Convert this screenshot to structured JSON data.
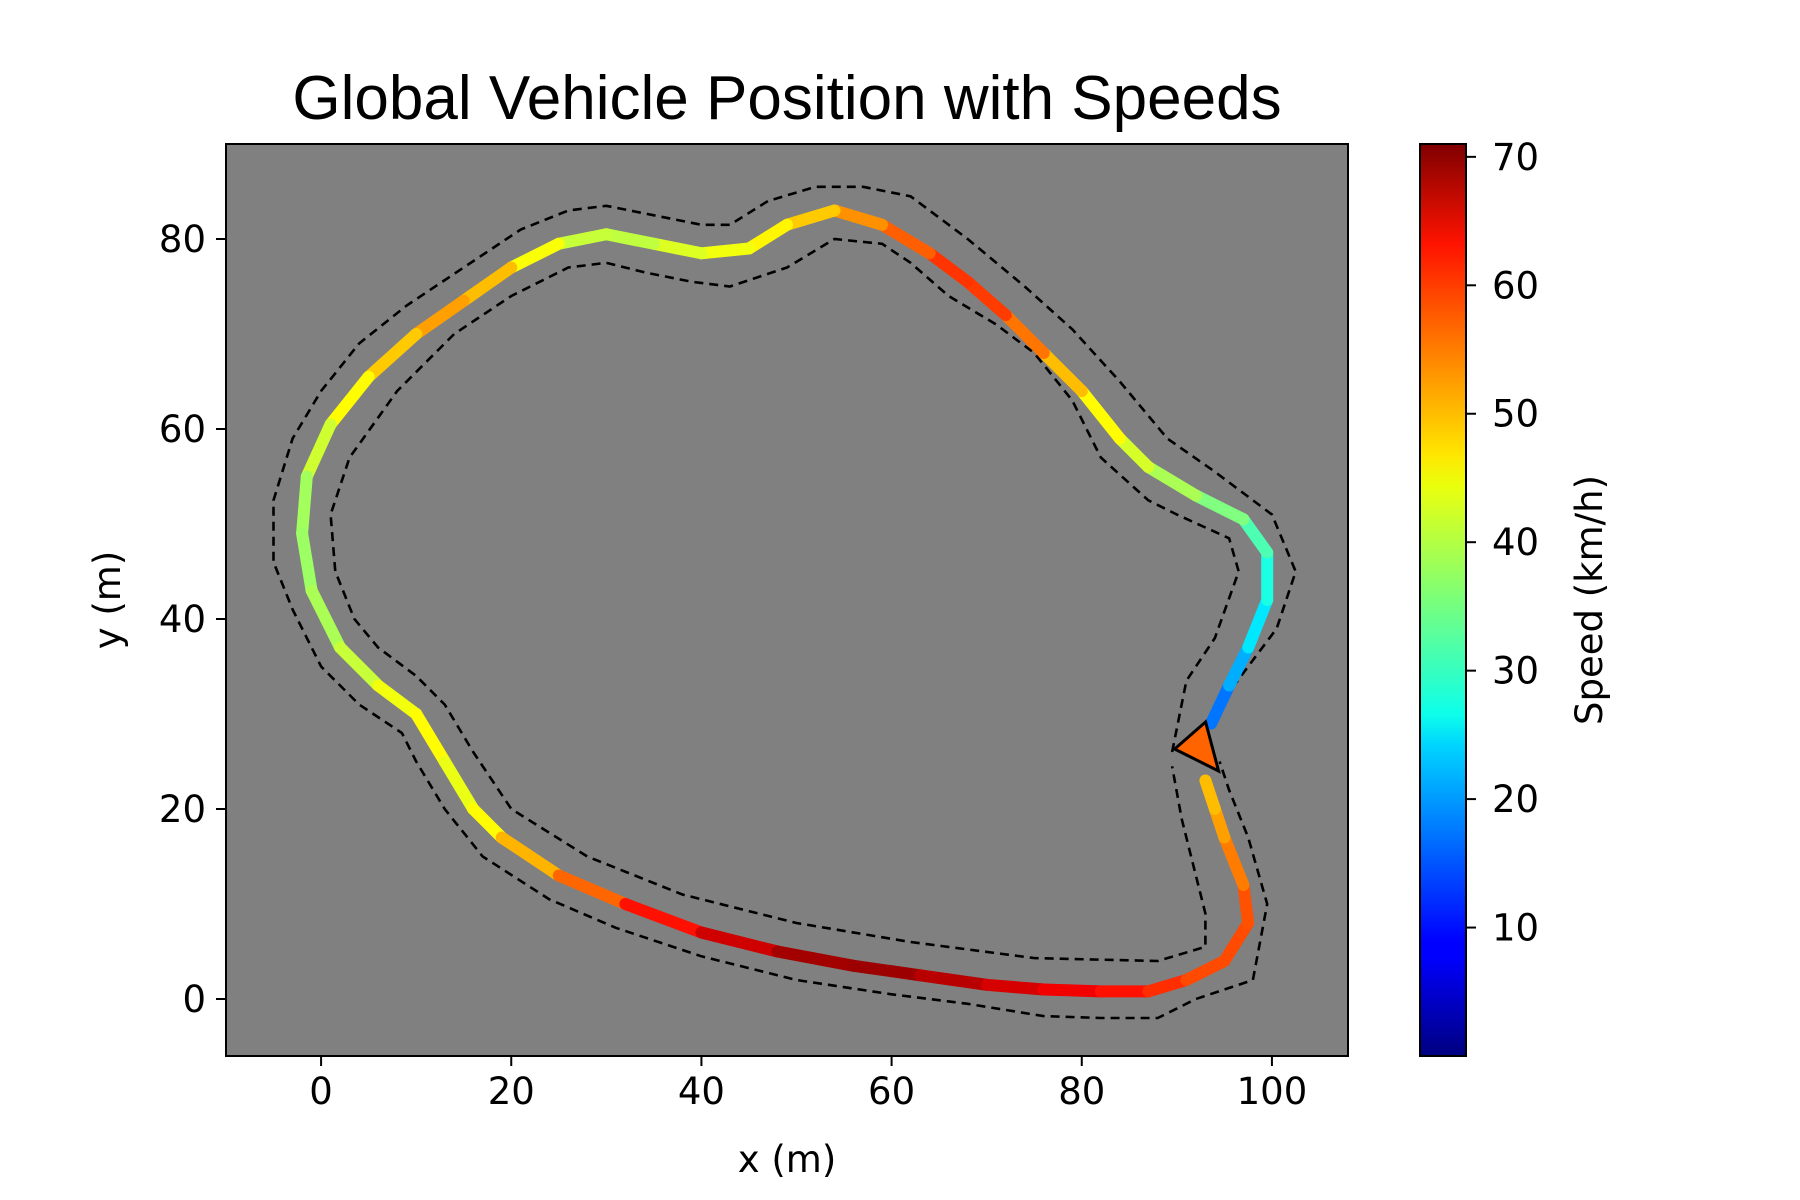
{
  "chart_data": {
    "type": "line",
    "title": "Global Vehicle Position with Speeds",
    "xlabel": "x (m)",
    "ylabel": "y (m)",
    "xlim": [
      -10,
      108
    ],
    "ylim": [
      -6,
      90
    ],
    "x_ticks": [
      0,
      20,
      40,
      60,
      80,
      100
    ],
    "y_ticks": [
      0,
      20,
      40,
      60,
      80
    ],
    "grid": false,
    "background_color": "#808080",
    "colormap": "jet",
    "colorbar": {
      "label": "Speed (km/h)",
      "min": 0,
      "max": 71,
      "ticks": [
        10,
        20,
        30,
        40,
        50,
        60,
        70
      ]
    },
    "series": [
      {
        "role": "vehicle-path",
        "points": [
          {
            "x": 93.6,
            "y": 29,
            "speed": 15
          },
          {
            "x": 95.5,
            "y": 33,
            "speed": 19
          },
          {
            "x": 97.5,
            "y": 37,
            "speed": 23
          },
          {
            "x": 99.5,
            "y": 42,
            "speed": 27
          },
          {
            "x": 99.5,
            "y": 47,
            "speed": 30
          },
          {
            "x": 97,
            "y": 50.5,
            "speed": 34
          },
          {
            "x": 92,
            "y": 53,
            "speed": 37
          },
          {
            "x": 87,
            "y": 56,
            "speed": 40
          },
          {
            "x": 84,
            "y": 59,
            "speed": 43
          },
          {
            "x": 80,
            "y": 64,
            "speed": 46
          },
          {
            "x": 76,
            "y": 68,
            "speed": 52
          },
          {
            "x": 72,
            "y": 72,
            "speed": 56
          },
          {
            "x": 68,
            "y": 75.5,
            "speed": 60
          },
          {
            "x": 64,
            "y": 78.5,
            "speed": 57
          },
          {
            "x": 59,
            "y": 81.5,
            "speed": 54
          },
          {
            "x": 54,
            "y": 83,
            "speed": 50
          },
          {
            "x": 49,
            "y": 81.5,
            "speed": 46
          },
          {
            "x": 45,
            "y": 79,
            "speed": 44
          },
          {
            "x": 40,
            "y": 78.5,
            "speed": 43
          },
          {
            "x": 35,
            "y": 79.5,
            "speed": 41
          },
          {
            "x": 30,
            "y": 80.5,
            "speed": 39
          },
          {
            "x": 25,
            "y": 79.5,
            "speed": 42
          },
          {
            "x": 20,
            "y": 77,
            "speed": 46
          },
          {
            "x": 15,
            "y": 73.5,
            "speed": 52
          },
          {
            "x": 10,
            "y": 70,
            "speed": 50
          },
          {
            "x": 5,
            "y": 65.5,
            "speed": 46
          },
          {
            "x": 1,
            "y": 60.5,
            "speed": 43
          },
          {
            "x": -1.5,
            "y": 55,
            "speed": 39
          },
          {
            "x": -2,
            "y": 49,
            "speed": 37
          },
          {
            "x": -1,
            "y": 43,
            "speed": 38
          },
          {
            "x": 2,
            "y": 37,
            "speed": 39
          },
          {
            "x": 6,
            "y": 33,
            "speed": 42
          },
          {
            "x": 10,
            "y": 30,
            "speed": 45
          },
          {
            "x": 13,
            "y": 25,
            "speed": 44
          },
          {
            "x": 16,
            "y": 20,
            "speed": 42
          },
          {
            "x": 19,
            "y": 17,
            "speed": 47
          },
          {
            "x": 25,
            "y": 13,
            "speed": 52
          },
          {
            "x": 32,
            "y": 10,
            "speed": 58
          },
          {
            "x": 40,
            "y": 7,
            "speed": 64
          },
          {
            "x": 48,
            "y": 5,
            "speed": 67
          },
          {
            "x": 56,
            "y": 3.5,
            "speed": 70
          },
          {
            "x": 63,
            "y": 2.5,
            "speed": 68
          },
          {
            "x": 70,
            "y": 1.5,
            "speed": 66
          },
          {
            "x": 76,
            "y": 1,
            "speed": 64
          },
          {
            "x": 82,
            "y": 0.8,
            "speed": 62
          },
          {
            "x": 87,
            "y": 0.8,
            "speed": 60
          },
          {
            "x": 91,
            "y": 2,
            "speed": 58
          },
          {
            "x": 95,
            "y": 4,
            "speed": 56
          },
          {
            "x": 97.5,
            "y": 8,
            "speed": 58
          },
          {
            "x": 97,
            "y": 12,
            "speed": 55
          },
          {
            "x": 95,
            "y": 17,
            "speed": 52
          },
          {
            "x": 94,
            "y": 20,
            "speed": 50
          },
          {
            "x": 93,
            "y": 23,
            "speed": 48
          }
        ]
      },
      {
        "role": "track-boundary-outer",
        "line_style": "dashed",
        "points": [
          {
            "x": 93,
            "y": 29
          },
          {
            "x": 96,
            "y": 33
          },
          {
            "x": 100.5,
            "y": 39
          },
          {
            "x": 102.5,
            "y": 45
          },
          {
            "x": 100,
            "y": 51
          },
          {
            "x": 94,
            "y": 55.5
          },
          {
            "x": 89,
            "y": 59
          },
          {
            "x": 84,
            "y": 65
          },
          {
            "x": 79,
            "y": 70.5
          },
          {
            "x": 74,
            "y": 75
          },
          {
            "x": 68,
            "y": 80
          },
          {
            "x": 62,
            "y": 84.5
          },
          {
            "x": 57,
            "y": 85.5
          },
          {
            "x": 52,
            "y": 85.5
          },
          {
            "x": 47,
            "y": 84
          },
          {
            "x": 43,
            "y": 81.5
          },
          {
            "x": 40,
            "y": 81.5
          },
          {
            "x": 35,
            "y": 82.5
          },
          {
            "x": 30,
            "y": 83.5
          },
          {
            "x": 26,
            "y": 83
          },
          {
            "x": 21,
            "y": 81
          },
          {
            "x": 15,
            "y": 77
          },
          {
            "x": 9,
            "y": 73
          },
          {
            "x": 4,
            "y": 69
          },
          {
            "x": 0,
            "y": 64
          },
          {
            "x": -3,
            "y": 59
          },
          {
            "x": -5,
            "y": 52.5
          },
          {
            "x": -5,
            "y": 46
          },
          {
            "x": -3,
            "y": 41
          },
          {
            "x": 0,
            "y": 35
          },
          {
            "x": 4,
            "y": 31
          },
          {
            "x": 8.5,
            "y": 28
          },
          {
            "x": 10,
            "y": 25
          },
          {
            "x": 13,
            "y": 20
          },
          {
            "x": 17,
            "y": 15
          },
          {
            "x": 24,
            "y": 10.5
          },
          {
            "x": 31,
            "y": 7.5
          },
          {
            "x": 40,
            "y": 4.5
          },
          {
            "x": 50,
            "y": 2
          },
          {
            "x": 60,
            "y": 0.5
          },
          {
            "x": 68,
            "y": -0.5
          },
          {
            "x": 76,
            "y": -1.8
          },
          {
            "x": 82,
            "y": -2
          },
          {
            "x": 88,
            "y": -2
          },
          {
            "x": 92,
            "y": 0
          },
          {
            "x": 98,
            "y": 2
          },
          {
            "x": 99.5,
            "y": 10
          },
          {
            "x": 97.5,
            "y": 17
          },
          {
            "x": 95.5,
            "y": 22
          },
          {
            "x": 94.5,
            "y": 25
          }
        ]
      },
      {
        "role": "track-boundary-inner",
        "line_style": "dashed",
        "points": [
          {
            "x": 89.5,
            "y": 26
          },
          {
            "x": 91,
            "y": 33.5
          },
          {
            "x": 94,
            "y": 38
          },
          {
            "x": 96.5,
            "y": 45
          },
          {
            "x": 95.5,
            "y": 48.5
          },
          {
            "x": 90,
            "y": 51
          },
          {
            "x": 87,
            "y": 52.5
          },
          {
            "x": 82,
            "y": 57
          },
          {
            "x": 79,
            "y": 63
          },
          {
            "x": 75,
            "y": 68
          },
          {
            "x": 71,
            "y": 71
          },
          {
            "x": 66,
            "y": 74
          },
          {
            "x": 62,
            "y": 77.5
          },
          {
            "x": 59,
            "y": 79.5
          },
          {
            "x": 54,
            "y": 80
          },
          {
            "x": 49,
            "y": 77
          },
          {
            "x": 43,
            "y": 75
          },
          {
            "x": 39,
            "y": 75.5
          },
          {
            "x": 34,
            "y": 76.5
          },
          {
            "x": 30,
            "y": 77.5
          },
          {
            "x": 26,
            "y": 77
          },
          {
            "x": 20,
            "y": 74
          },
          {
            "x": 14,
            "y": 70
          },
          {
            "x": 8,
            "y": 64
          },
          {
            "x": 3,
            "y": 57
          },
          {
            "x": 1,
            "y": 51
          },
          {
            "x": 1.5,
            "y": 45
          },
          {
            "x": 3.5,
            "y": 40
          },
          {
            "x": 6,
            "y": 37
          },
          {
            "x": 10,
            "y": 34
          },
          {
            "x": 13,
            "y": 31
          },
          {
            "x": 16,
            "y": 26
          },
          {
            "x": 20,
            "y": 20
          },
          {
            "x": 28,
            "y": 15
          },
          {
            "x": 38,
            "y": 11
          },
          {
            "x": 50,
            "y": 8
          },
          {
            "x": 62,
            "y": 6
          },
          {
            "x": 75,
            "y": 4.3
          },
          {
            "x": 88,
            "y": 4
          },
          {
            "x": 93,
            "y": 5.5
          },
          {
            "x": 93,
            "y": 9
          },
          {
            "x": 91.5,
            "y": 15
          },
          {
            "x": 90.5,
            "y": 19
          },
          {
            "x": 89.5,
            "y": 24.5
          }
        ]
      }
    ],
    "vehicle_marker": {
      "x": 92.5,
      "y": 26,
      "shape": "triangle",
      "heading": "pointing left",
      "fill_color": "#ff6400",
      "edge_color": "#000000"
    }
  }
}
